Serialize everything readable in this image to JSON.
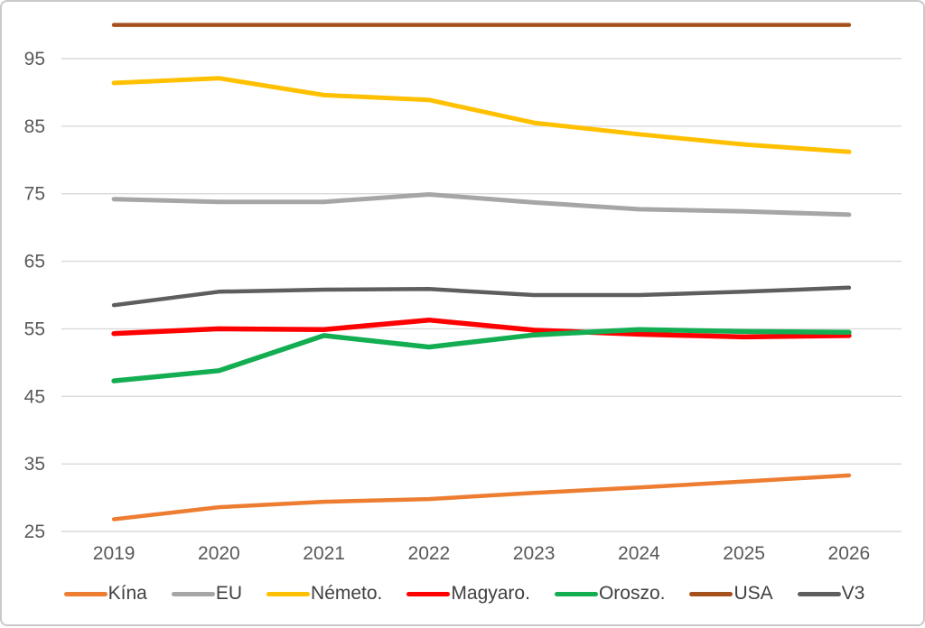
{
  "chart_data": {
    "type": "line",
    "title": "",
    "xlabel": "",
    "ylabel": "",
    "x": [
      "2019",
      "2020",
      "2021",
      "2022",
      "2023",
      "2024",
      "2025",
      "2026"
    ],
    "yticks": [
      25,
      35,
      45,
      55,
      65,
      75,
      85,
      95
    ],
    "ylim": [
      25,
      95
    ],
    "grid": true,
    "legend_position": "bottom",
    "series": [
      {
        "name": "Kína",
        "color": "#ED7D31",
        "stroke_width": 4.5,
        "values": [
          26.8,
          28.6,
          29.4,
          29.8,
          30.7,
          31.5,
          32.4,
          33.3
        ]
      },
      {
        "name": "EU",
        "color": "#A6A6A6",
        "stroke_width": 5,
        "values": [
          74.2,
          73.8,
          73.8,
          74.9,
          73.7,
          72.7,
          72.4,
          71.9
        ]
      },
      {
        "name": "Németo.",
        "color": "#FFC000",
        "stroke_width": 5,
        "values": [
          91.4,
          92.1,
          89.6,
          88.9,
          85.5,
          83.8,
          82.3,
          81.2
        ]
      },
      {
        "name": "Magyaro.",
        "color": "#FF0000",
        "stroke_width": 5.5,
        "values": [
          54.3,
          55.0,
          54.9,
          56.3,
          54.8,
          54.2,
          53.8,
          54.0
        ]
      },
      {
        "name": "Oroszo.",
        "color": "#13AD52",
        "stroke_width": 5.5,
        "values": [
          47.3,
          48.8,
          54.0,
          52.3,
          54.1,
          54.9,
          54.6,
          54.5
        ]
      },
      {
        "name": "USA",
        "color": "#A5511D",
        "stroke_width": 4.5,
        "values": [
          100,
          100,
          100,
          100,
          100,
          100,
          100,
          100
        ]
      },
      {
        "name": "V3",
        "color": "#5E5E5E",
        "stroke_width": 4.5,
        "values": [
          58.5,
          60.5,
          60.8,
          60.9,
          60.0,
          60.0,
          60.5,
          61.1
        ]
      }
    ]
  },
  "styles": {
    "grid_color": "#D9D9D9",
    "tick_color": "#595959",
    "legend_text_color": "#404040",
    "frame_border_color": "#C9C9C9",
    "background": "#FFFFFF"
  }
}
